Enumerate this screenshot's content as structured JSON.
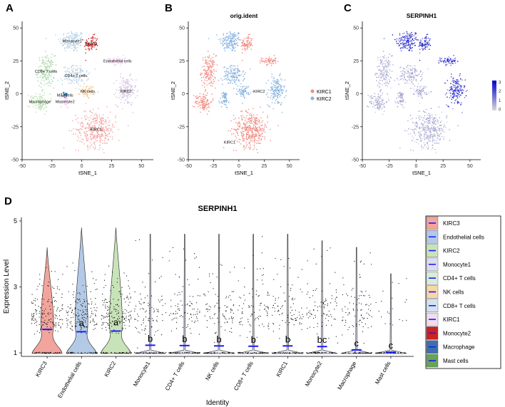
{
  "panels": {
    "A": {
      "letter": "A"
    },
    "B": {
      "letter": "B",
      "title": "orig.ident",
      "cluster_labels": [
        "KIRC2",
        "KIRC1"
      ]
    },
    "C": {
      "letter": "C",
      "title": "SERPINH1"
    },
    "D": {
      "letter": "D"
    }
  },
  "chart_data": [
    {
      "panel": "A",
      "type": "scatter",
      "title": "",
      "xlabel": "tSNE_1",
      "ylabel": "tSNE_2",
      "xlim": [
        -50,
        60
      ],
      "ylim": [
        -50,
        55
      ],
      "xticks": [
        -50,
        -25,
        0,
        25,
        50
      ],
      "yticks": [
        -50,
        -25,
        0,
        25,
        50
      ],
      "clusters": [
        {
          "name": "Monocyte1",
          "center": [
            -8,
            40
          ],
          "spread": [
            9,
            7
          ],
          "color": "#b5cfe3"
        },
        {
          "name": "KIRC3",
          "center": [
            8,
            38
          ],
          "spread": [
            5,
            5
          ],
          "color": "#d11f1f"
        },
        {
          "name": "Endothelial cells",
          "center": [
            30,
            25
          ],
          "spread": [
            6,
            3
          ],
          "color": "#f0c5ea"
        },
        {
          "name": "CD8+ T cells",
          "center": [
            -30,
            17
          ],
          "spread": [
            6,
            10
          ],
          "color": "#a8d4a8"
        },
        {
          "name": "CD4+ T cells",
          "center": [
            -5,
            14
          ],
          "spread": [
            9,
            6
          ],
          "color": "#b5cfe3"
        },
        {
          "name": "NK cells",
          "center": [
            5,
            2
          ],
          "spread": [
            5,
            4
          ],
          "color": "#f0c38a"
        },
        {
          "name": "KIRC2",
          "center": [
            37,
            2
          ],
          "spread": [
            7,
            9
          ],
          "color": "#d4c1e2"
        },
        {
          "name": "Mastcells",
          "center": [
            -14,
            -1
          ],
          "spread": [
            2,
            2
          ],
          "color": "#1f77b4"
        },
        {
          "name": "Macrophage",
          "center": [
            -35,
            -6
          ],
          "spread": [
            7,
            6
          ],
          "color": "#b8dfb0"
        },
        {
          "name": "Monocyte2",
          "center": [
            -14,
            -6
          ],
          "spread": [
            3,
            4
          ],
          "color": "#f0c5ea"
        },
        {
          "name": "KIRC1",
          "center": [
            12,
            -27
          ],
          "spread": [
            14,
            11
          ],
          "color": "#f5a5a5"
        }
      ]
    },
    {
      "panel": "B",
      "type": "scatter",
      "title": "orig.ident",
      "xlabel": "tSNE_1",
      "ylabel": "tSNE_2",
      "xlim": [
        -50,
        60
      ],
      "ylim": [
        -50,
        55
      ],
      "xticks": [
        -50,
        -25,
        0,
        25,
        50
      ],
      "yticks": [
        -50,
        -25,
        0,
        25,
        50
      ],
      "legend": [
        {
          "name": "KIRC1",
          "color": "#f28b82"
        },
        {
          "name": "KIRC2",
          "color": "#8ab4e0"
        }
      ],
      "legend_position": "right"
    },
    {
      "panel": "C",
      "type": "scatter",
      "title": "SERPINH1",
      "xlabel": "tSNE_1",
      "ylabel": "tSNE_2",
      "xlim": [
        -50,
        60
      ],
      "ylim": [
        -50,
        55
      ],
      "xticks": [
        -50,
        -25,
        0,
        25,
        50
      ],
      "yticks": [
        -50,
        -25,
        0,
        25,
        50
      ],
      "colorbar": {
        "min": 0,
        "max": 3,
        "ticks": [
          0,
          1,
          2,
          3
        ],
        "low_color": "#d9d9d9",
        "high_color": "#0000cc"
      },
      "legend_position": "right"
    },
    {
      "panel": "D",
      "type": "violin",
      "title": "SERPINH1",
      "xlabel": "Identity",
      "ylabel": "Expression Level",
      "ylim": [
        1,
        5
      ],
      "yticks": [
        1,
        3,
        5
      ],
      "categories": [
        "KIRC3",
        "Endothelial cells",
        "KIRC2",
        "Monocyte1",
        "CD4+ T cells",
        "NK cells",
        "CD8+ T cells",
        "KIRC1",
        "Monocyte2",
        "Macrophage",
        "Mast cells"
      ],
      "colors": [
        "#f2a59c",
        "#b3c9e6",
        "#c8e3b8",
        "#e3e3f3",
        "#e3e3f3",
        "#e3e3f3",
        "#e3e3f3",
        "#e3e3f3",
        "#e3e3f3",
        "#e3e3f3",
        "#e3e3f3"
      ],
      "means": [
        1.71,
        1.64,
        1.66,
        1.23,
        1.22,
        1.21,
        1.2,
        1.21,
        1.19,
        1.09,
        1.02
      ],
      "max_values": [
        4.2,
        4.8,
        4.8,
        4.6,
        4.6,
        4.6,
        4.6,
        4.6,
        4.4,
        4.2,
        3.4
      ],
      "significance": [
        "",
        "a",
        "a",
        "b",
        "b",
        "b",
        "b",
        "b",
        "bc",
        "c",
        "c"
      ],
      "legend": [
        {
          "name": "KIRC3",
          "color": "#f2a59c"
        },
        {
          "name": "Endothelial cells",
          "color": "#b3c9e6"
        },
        {
          "name": "KIRC2",
          "color": "#c8e3b8"
        },
        {
          "name": "Monocyte1",
          "color": "#dcdcf0"
        },
        {
          "name": "CD4+ T cells",
          "color": "#d8ecd8"
        },
        {
          "name": "NK cells",
          "color": "#f7d6a8"
        },
        {
          "name": "CD8+ T cells",
          "color": "#d3e3f0"
        },
        {
          "name": "KIRC1",
          "color": "#f3dcf0"
        },
        {
          "name": "Monocyte2",
          "color": "#cc2222"
        },
        {
          "name": "Macrophage",
          "color": "#3e6fad"
        },
        {
          "name": "Mast cells",
          "color": "#68a356"
        }
      ],
      "legend_position": "right"
    }
  ]
}
